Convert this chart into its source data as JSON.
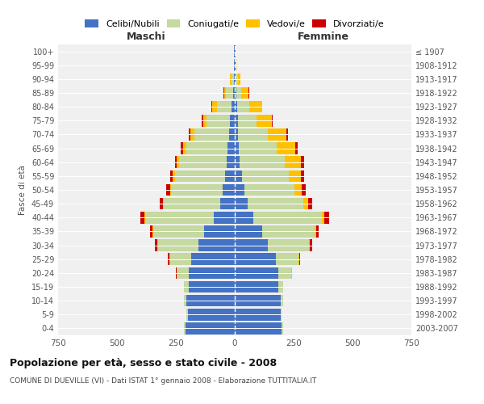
{
  "age_groups": [
    "0-4",
    "5-9",
    "10-14",
    "15-19",
    "20-24",
    "25-29",
    "30-34",
    "35-39",
    "40-44",
    "45-49",
    "50-54",
    "55-59",
    "60-64",
    "65-69",
    "70-74",
    "75-79",
    "80-84",
    "85-89",
    "90-94",
    "95-99",
    "100+"
  ],
  "birth_years": [
    "2003-2007",
    "1998-2002",
    "1993-1997",
    "1988-1992",
    "1983-1987",
    "1978-1982",
    "1973-1977",
    "1968-1972",
    "1963-1967",
    "1958-1962",
    "1953-1957",
    "1948-1952",
    "1943-1947",
    "1938-1942",
    "1933-1937",
    "1928-1932",
    "1923-1927",
    "1918-1922",
    "1913-1917",
    "1908-1912",
    "≤ 1907"
  ],
  "male": {
    "celibi": [
      210,
      200,
      205,
      195,
      195,
      185,
      155,
      130,
      90,
      60,
      50,
      40,
      35,
      30,
      25,
      20,
      15,
      8,
      5,
      2,
      2
    ],
    "coniugati": [
      5,
      5,
      10,
      20,
      50,
      90,
      170,
      215,
      290,
      240,
      220,
      215,
      200,
      175,
      145,
      100,
      60,
      28,
      10,
      3,
      2
    ],
    "vedovi": [
      0,
      0,
      0,
      0,
      2,
      3,
      5,
      5,
      5,
      5,
      5,
      8,
      10,
      15,
      20,
      15,
      20,
      10,
      5,
      0,
      0
    ],
    "divorziati": [
      0,
      0,
      0,
      0,
      3,
      5,
      8,
      8,
      15,
      12,
      15,
      12,
      10,
      8,
      5,
      5,
      3,
      2,
      0,
      0,
      0
    ]
  },
  "female": {
    "nubili": [
      200,
      195,
      195,
      185,
      185,
      175,
      140,
      115,
      80,
      55,
      40,
      30,
      22,
      18,
      15,
      12,
      10,
      8,
      5,
      2,
      2
    ],
    "coniugate": [
      5,
      5,
      10,
      20,
      55,
      95,
      175,
      225,
      290,
      235,
      215,
      200,
      190,
      160,
      125,
      80,
      50,
      20,
      8,
      3,
      2
    ],
    "vedove": [
      0,
      0,
      0,
      0,
      2,
      3,
      5,
      5,
      10,
      20,
      30,
      50,
      70,
      80,
      80,
      65,
      55,
      30,
      10,
      2,
      0
    ],
    "divorziate": [
      0,
      0,
      0,
      0,
      2,
      5,
      8,
      12,
      20,
      18,
      18,
      15,
      12,
      10,
      5,
      5,
      3,
      2,
      0,
      0,
      0
    ]
  },
  "colors": {
    "celibi": "#4472c4",
    "coniugati": "#c5d9a0",
    "vedovi": "#ffc000",
    "divorziati": "#cc0000"
  },
  "title": "Popolazione per età, sesso e stato civile - 2008",
  "subtitle": "COMUNE DI DUEVILLE (VI) - Dati ISTAT 1° gennaio 2008 - Elaborazione TUTTITALIA.IT",
  "xlabel_left": "Maschi",
  "xlabel_right": "Femmine",
  "ylabel_left": "Fasce di età",
  "xlim": 750,
  "background_color": "#ffffff",
  "plot_bg_color": "#f0f0f0",
  "grid_color": "#cccccc"
}
